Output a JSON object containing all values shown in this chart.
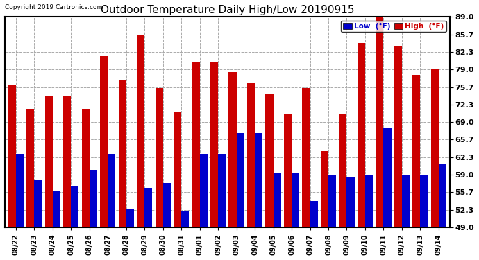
{
  "dates": [
    "08/22",
    "08/23",
    "08/24",
    "08/25",
    "08/26",
    "08/27",
    "08/28",
    "08/29",
    "08/30",
    "08/31",
    "09/01",
    "09/02",
    "09/03",
    "09/04",
    "09/05",
    "09/06",
    "09/07",
    "09/08",
    "09/09",
    "09/10",
    "09/11",
    "09/12",
    "09/13",
    "09/14"
  ],
  "highs": [
    76.0,
    71.5,
    74.0,
    74.0,
    71.5,
    81.5,
    77.0,
    85.5,
    75.5,
    71.0,
    80.5,
    80.5,
    78.5,
    76.5,
    74.5,
    70.5,
    75.5,
    63.5,
    70.5,
    84.0,
    89.0,
    83.5,
    78.0,
    79.0
  ],
  "lows": [
    63.0,
    58.0,
    56.0,
    57.0,
    60.0,
    63.0,
    52.5,
    56.5,
    57.5,
    52.0,
    63.0,
    63.0,
    67.0,
    67.0,
    59.5,
    59.5,
    54.0,
    59.0,
    58.5,
    59.0,
    68.0,
    59.0,
    59.0,
    61.0
  ],
  "title": "Outdoor Temperature Daily High/Low 20190915",
  "copyright": "Copyright 2019 Cartronics.com",
  "low_color": "#0000cc",
  "high_color": "#cc0000",
  "bg_color": "#ffffff",
  "grid_color": "#aaaaaa",
  "ylim_min": 49.0,
  "ylim_max": 89.0,
  "yticks": [
    49.0,
    52.3,
    55.7,
    59.0,
    62.3,
    65.7,
    69.0,
    72.3,
    75.7,
    79.0,
    82.3,
    85.7,
    89.0
  ]
}
